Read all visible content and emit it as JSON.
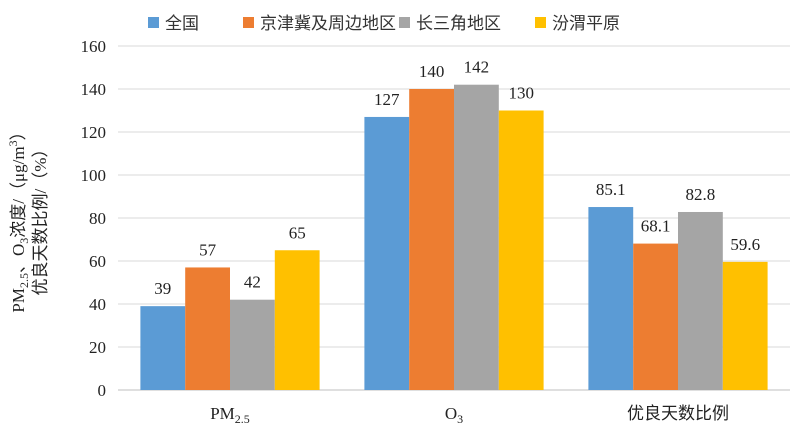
{
  "chart_data": {
    "type": "bar",
    "categories": [
      "PM2.5",
      "O3",
      "优良天数比例"
    ],
    "category_labels": [
      {
        "main": "PM",
        "sub": "2.5"
      },
      {
        "main": "O",
        "sub": "3"
      },
      {
        "main": "优良天数比例",
        "sub": ""
      }
    ],
    "series": [
      {
        "name": "全国",
        "color": "#5B9BD5",
        "values": [
          39,
          127,
          85.1
        ],
        "labels": [
          "39",
          "127",
          "85.1"
        ]
      },
      {
        "name": "京津冀及周边地区",
        "color": "#ED7D31",
        "values": [
          57,
          140,
          68.1
        ],
        "labels": [
          "57",
          "140",
          "68.1"
        ]
      },
      {
        "name": "长三角地区",
        "color": "#A5A5A5",
        "values": [
          42,
          142,
          82.8
        ],
        "labels": [
          "42",
          "142",
          "82.8"
        ]
      },
      {
        "name": "汾渭平原",
        "color": "#FFC000",
        "values": [
          65,
          130,
          59.6
        ],
        "labels": [
          "65",
          "130",
          "59.6"
        ]
      }
    ],
    "ylabel_lines": [
      "PM2.5、O3浓度/（μg/m³）",
      "优良天数比例/（%）"
    ],
    "ylim": [
      0,
      160
    ],
    "yticks": [
      "0",
      "20",
      "40",
      "60",
      "80",
      "100",
      "120",
      "140",
      "160"
    ],
    "grid": true,
    "legend_position": "top"
  }
}
